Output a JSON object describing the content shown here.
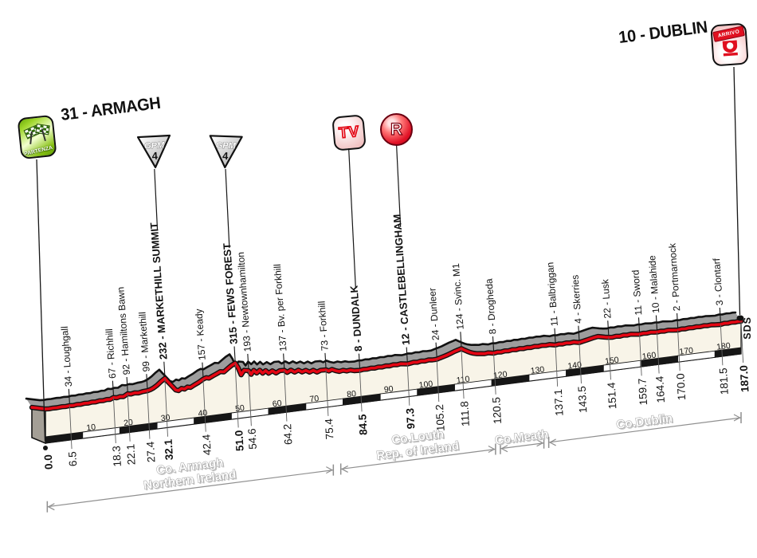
{
  "header": {
    "start_title": "31 - ARMAGH",
    "finish_title": "10 - DUBLIN",
    "partenza_label": "PARTENZA",
    "arrivo_label": "ARRIVO",
    "gpm_label": "GPM",
    "gpm_category": "4",
    "tv_label": "TV",
    "r_label": "R",
    "sds_label": "SDS"
  },
  "colors": {
    "road_red": "#e30613",
    "terrain_gray": "#9d9d9d",
    "pedestal_cream": "#f8f4e8",
    "outline_black": "#111111",
    "region_gray": "#8f8f8f",
    "partenza_green": "#86c012",
    "arrivo_red": "#e01020"
  },
  "chart_data": {
    "type": "area",
    "x_range_km": [
      0,
      187
    ],
    "distance_ticks": [
      10,
      20,
      30,
      40,
      50,
      60,
      70,
      80,
      90,
      100,
      110,
      120,
      130,
      140,
      150,
      160,
      170,
      180
    ],
    "waypoints": [
      {
        "km": 0.0,
        "elev": 31,
        "label": "",
        "km_label": "0.0",
        "bold": true,
        "marker": "start"
      },
      {
        "km": 6.5,
        "elev": 34,
        "label": "34 - Loughgall",
        "km_label": "6.5",
        "bold": false,
        "marker": ""
      },
      {
        "km": 18.3,
        "elev": 67,
        "label": "67 - Richhill",
        "km_label": "18.3",
        "bold": false,
        "marker": ""
      },
      {
        "km": 22.1,
        "elev": 92,
        "label": "92 - Hamiltons Bawn",
        "km_label": "22.1",
        "bold": false,
        "marker": ""
      },
      {
        "km": 27.4,
        "elev": 99,
        "label": "99 - Markethill",
        "km_label": "27.4",
        "bold": false,
        "marker": ""
      },
      {
        "km": 32.1,
        "elev": 232,
        "label": "232 - MARKETHILL SUMMIT",
        "km_label": "32.1",
        "bold": true,
        "marker": "gpm"
      },
      {
        "km": 42.4,
        "elev": 157,
        "label": "157 - Keady",
        "km_label": "42.4",
        "bold": false,
        "marker": ""
      },
      {
        "km": 51.0,
        "elev": 315,
        "label": "315 - FEWS FOREST",
        "km_label": "51.0",
        "bold": true,
        "marker": "gpm"
      },
      {
        "km": 54.6,
        "elev": 193,
        "label": "193 - Newtownhamilton",
        "km_label": "54.6",
        "bold": false,
        "marker": ""
      },
      {
        "km": 64.2,
        "elev": 137,
        "label": "137 - Bv. per Forkhill",
        "km_label": "64.2",
        "bold": false,
        "marker": ""
      },
      {
        "km": 75.4,
        "elev": 73,
        "label": "73 - Forkhill",
        "km_label": "75.4",
        "bold": false,
        "marker": ""
      },
      {
        "km": 84.5,
        "elev": 8,
        "label": "8 - DUNDALK",
        "km_label": "84.5",
        "bold": true,
        "marker": "tv"
      },
      {
        "km": 97.3,
        "elev": 12,
        "label": "12 - CASTLEBELLINGHAM",
        "km_label": "97.3",
        "bold": true,
        "marker": "r"
      },
      {
        "km": 105.2,
        "elev": 24,
        "label": "24 - Dunleer",
        "km_label": "105.2",
        "bold": false,
        "marker": ""
      },
      {
        "km": 111.8,
        "elev": 124,
        "label": "124 - Svinc. M1",
        "km_label": "111.8",
        "bold": false,
        "marker": ""
      },
      {
        "km": 120.5,
        "elev": 8,
        "label": "8 - Drogheda",
        "km_label": "120.5",
        "bold": false,
        "marker": ""
      },
      {
        "km": 137.1,
        "elev": 11,
        "label": "11 - Balbriggan",
        "km_label": "137.1",
        "bold": false,
        "marker": ""
      },
      {
        "km": 143.5,
        "elev": 4,
        "label": "4 - Skerries",
        "km_label": "143.5",
        "bold": false,
        "marker": ""
      },
      {
        "km": 151.4,
        "elev": 22,
        "label": "22 - Lusk",
        "km_label": "151.4",
        "bold": false,
        "marker": ""
      },
      {
        "km": 159.7,
        "elev": 11,
        "label": "11 - Sword",
        "km_label": "159.7",
        "bold": false,
        "marker": ""
      },
      {
        "km": 164.4,
        "elev": 10,
        "label": "10 - Malahide",
        "km_label": "164.4",
        "bold": false,
        "marker": ""
      },
      {
        "km": 170.0,
        "elev": 2,
        "label": "2 - Portmarnock",
        "km_label": "170.0",
        "bold": false,
        "marker": ""
      },
      {
        "km": 181.5,
        "elev": 3,
        "label": "3 - Clontarf",
        "km_label": "181.5",
        "bold": false,
        "marker": ""
      },
      {
        "km": 187.0,
        "elev": 10,
        "label": "",
        "km_label": "187.0",
        "bold": true,
        "marker": "finish"
      }
    ],
    "markers": [
      {
        "type": "gpm",
        "label": "GPM",
        "category": "4",
        "km": 32.1
      },
      {
        "type": "gpm",
        "label": "GPM",
        "category": "4",
        "km": 51.0
      },
      {
        "type": "tv",
        "label": "TV",
        "km": 84.5
      },
      {
        "type": "r",
        "label": "R",
        "km": 97.3
      }
    ],
    "regions": [
      {
        "lines": [
          "Co. Armagh",
          "Northern Ireland"
        ],
        "from_km": 0.5,
        "to_km": 77.4
      },
      {
        "lines": [
          "Co.Louth",
          "Rep. of Ireland"
        ],
        "from_km": 79.4,
        "to_km": 121.0
      },
      {
        "lines": [
          "Co.Meath"
        ],
        "from_km": 122.3,
        "to_km": 134.0
      },
      {
        "lines": [
          "Co.Dublin"
        ],
        "from_km": 135.3,
        "to_km": 187.0
      }
    ],
    "profile": [
      [
        0,
        31
      ],
      [
        1,
        27
      ],
      [
        2,
        31
      ],
      [
        3,
        28
      ],
      [
        4.5,
        33
      ],
      [
        5.5,
        30
      ],
      [
        6.5,
        34
      ],
      [
        7.5,
        30
      ],
      [
        8.5,
        37
      ],
      [
        9.5,
        33
      ],
      [
        10.5,
        40
      ],
      [
        11.5,
        36
      ],
      [
        12.5,
        43
      ],
      [
        13.5,
        39
      ],
      [
        14.5,
        47
      ],
      [
        15.5,
        43
      ],
      [
        16.5,
        52
      ],
      [
        17.4,
        48
      ],
      [
        18.3,
        67
      ],
      [
        19.2,
        58
      ],
      [
        20,
        68
      ],
      [
        21,
        62
      ],
      [
        22.1,
        92
      ],
      [
        23,
        83
      ],
      [
        24,
        93
      ],
      [
        25,
        86
      ],
      [
        26.2,
        96
      ],
      [
        27.4,
        99
      ],
      [
        28.2,
        108
      ],
      [
        29,
        125
      ],
      [
        30,
        155
      ],
      [
        31,
        195
      ],
      [
        32.1,
        232
      ],
      [
        32.8,
        190
      ],
      [
        33.5,
        150
      ],
      [
        34.2,
        110
      ],
      [
        35,
        62
      ],
      [
        35.8,
        48
      ],
      [
        36.6,
        72
      ],
      [
        37.4,
        58
      ],
      [
        38.2,
        80
      ],
      [
        39,
        70
      ],
      [
        40,
        95
      ],
      [
        41.2,
        122
      ],
      [
        42.4,
        157
      ],
      [
        43.2,
        172
      ],
      [
        44,
        162
      ],
      [
        45,
        185
      ],
      [
        46,
        205
      ],
      [
        47,
        228
      ],
      [
        48,
        218
      ],
      [
        49,
        255
      ],
      [
        50,
        290
      ],
      [
        51,
        315
      ],
      [
        51.8,
        250
      ],
      [
        52.6,
        150
      ],
      [
        53.4,
        205
      ],
      [
        54.6,
        193
      ],
      [
        55.3,
        140
      ],
      [
        56,
        188
      ],
      [
        56.8,
        148
      ],
      [
        57.6,
        180
      ],
      [
        58.4,
        135
      ],
      [
        59.2,
        165
      ],
      [
        60,
        125
      ],
      [
        61,
        150
      ],
      [
        62,
        115
      ],
      [
        63,
        140
      ],
      [
        64.2,
        137
      ],
      [
        65,
        105
      ],
      [
        66,
        128
      ],
      [
        67,
        95
      ],
      [
        68,
        115
      ],
      [
        69,
        85
      ],
      [
        70,
        100
      ],
      [
        71,
        70
      ],
      [
        72,
        88
      ],
      [
        73,
        58
      ],
      [
        74,
        75
      ],
      [
        75.4,
        73
      ],
      [
        76.2,
        52
      ],
      [
        77,
        68
      ],
      [
        78,
        45
      ],
      [
        79,
        28
      ],
      [
        80,
        38
      ],
      [
        81,
        22
      ],
      [
        82,
        28
      ],
      [
        83,
        14
      ],
      [
        84.5,
        8
      ],
      [
        85.5,
        16
      ],
      [
        86.5,
        11
      ],
      [
        87.5,
        19
      ],
      [
        88.5,
        13
      ],
      [
        89.5,
        21
      ],
      [
        90.5,
        15
      ],
      [
        91.5,
        23
      ],
      [
        92.5,
        17
      ],
      [
        93.5,
        25
      ],
      [
        94.5,
        19
      ],
      [
        95.5,
        26
      ],
      [
        96.4,
        20
      ],
      [
        97.3,
        12
      ],
      [
        98.2,
        18
      ],
      [
        99,
        24
      ],
      [
        100,
        18
      ],
      [
        101,
        27
      ],
      [
        102,
        21
      ],
      [
        103,
        29
      ],
      [
        104,
        23
      ],
      [
        105.2,
        24
      ],
      [
        106,
        36
      ],
      [
        107,
        48
      ],
      [
        108,
        62
      ],
      [
        109,
        80
      ],
      [
        110,
        98
      ],
      [
        111,
        112
      ],
      [
        111.8,
        124
      ],
      [
        112.6,
        100
      ],
      [
        113.4,
        78
      ],
      [
        114.2,
        58
      ],
      [
        115,
        42
      ],
      [
        116,
        30
      ],
      [
        117,
        24
      ],
      [
        118,
        17
      ],
      [
        119,
        22
      ],
      [
        120.5,
        8
      ],
      [
        121.5,
        16
      ],
      [
        122.5,
        11
      ],
      [
        123.5,
        19
      ],
      [
        124.5,
        14
      ],
      [
        125.5,
        22
      ],
      [
        126.5,
        16
      ],
      [
        127.5,
        24
      ],
      [
        128.5,
        18
      ],
      [
        129.5,
        26
      ],
      [
        130.5,
        20
      ],
      [
        131.5,
        28
      ],
      [
        132.5,
        22
      ],
      [
        133.5,
        29
      ],
      [
        134.5,
        23
      ],
      [
        135.5,
        28
      ],
      [
        136.3,
        20
      ],
      [
        137.1,
        11
      ],
      [
        138,
        18
      ],
      [
        139,
        13
      ],
      [
        140,
        20
      ],
      [
        141,
        14
      ],
      [
        142,
        19
      ],
      [
        143.5,
        4
      ],
      [
        144.5,
        14
      ],
      [
        145.5,
        24
      ],
      [
        146.5,
        34
      ],
      [
        147.5,
        45
      ],
      [
        148.5,
        52
      ],
      [
        149.5,
        42
      ],
      [
        150.4,
        32
      ],
      [
        151.4,
        22
      ],
      [
        152.4,
        17
      ],
      [
        153.4,
        24
      ],
      [
        154.4,
        18
      ],
      [
        155.4,
        26
      ],
      [
        156.4,
        20
      ],
      [
        157.4,
        26
      ],
      [
        158.5,
        18
      ],
      [
        159.7,
        11
      ],
      [
        160.7,
        17
      ],
      [
        161.7,
        13
      ],
      [
        162.7,
        19
      ],
      [
        163.5,
        14
      ],
      [
        164.4,
        10
      ],
      [
        165.4,
        15
      ],
      [
        166.4,
        10
      ],
      [
        167.4,
        16
      ],
      [
        168.6,
        9
      ],
      [
        170,
        2
      ],
      [
        171,
        9
      ],
      [
        172,
        5
      ],
      [
        173,
        11
      ],
      [
        174,
        7
      ],
      [
        175,
        13
      ],
      [
        176,
        8
      ],
      [
        177,
        14
      ],
      [
        178,
        9
      ],
      [
        179,
        13
      ],
      [
        180,
        8
      ],
      [
        181.5,
        3
      ],
      [
        182.5,
        11
      ],
      [
        183.5,
        7
      ],
      [
        184.5,
        13
      ],
      [
        185.5,
        9
      ],
      [
        186.2,
        13
      ],
      [
        187,
        10
      ]
    ]
  }
}
